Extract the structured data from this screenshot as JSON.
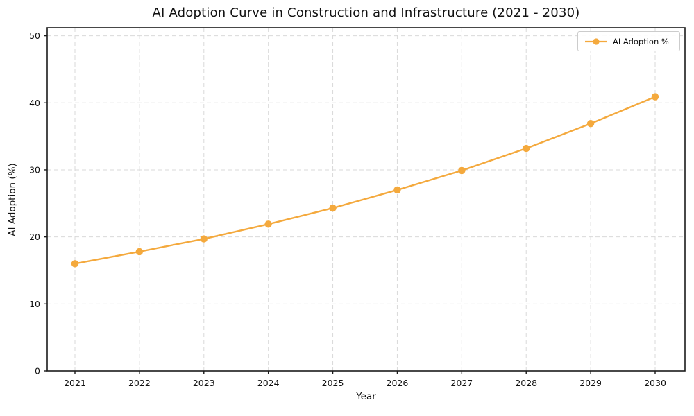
{
  "chart_data": {
    "type": "line",
    "title": "AI Adoption Curve in Construction and Infrastructure (2021 - 2030)",
    "xlabel": "Year",
    "ylabel": "AI Adoption (%)",
    "categories": [
      "2021",
      "2022",
      "2023",
      "2024",
      "2025",
      "2026",
      "2027",
      "2028",
      "2029",
      "2030"
    ],
    "series": [
      {
        "name": "AI Adoption %",
        "values": [
          16.0,
          17.8,
          19.7,
          21.9,
          24.3,
          27.0,
          29.9,
          33.2,
          36.9,
          40.9
        ]
      }
    ],
    "y_ticks": [
      0,
      10,
      20,
      30,
      40,
      50
    ],
    "ylim": [
      0,
      51.2
    ],
    "grid": true,
    "grid_style": "dashed",
    "legend_position": "upper right",
    "legend_entries": [
      "AI Adoption %"
    ]
  },
  "colors": {
    "series": "#F4A93D",
    "grid": "#d9d9d9",
    "axis": "#1a1a1a",
    "text": "#111111",
    "background": "#ffffff"
  }
}
